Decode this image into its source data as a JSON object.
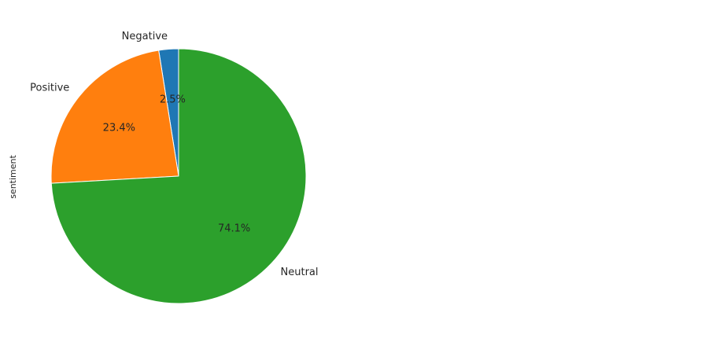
{
  "chart_data": {
    "type": "pie",
    "categories": [
      "Negative",
      "Positive",
      "Neutral"
    ],
    "values": [
      2.5,
      23.4,
      74.1
    ],
    "value_labels": [
      "2.5%",
      "23.4%",
      "74.1%"
    ],
    "colors": [
      "#1f77b4",
      "#ff7f0e",
      "#2ca02c"
    ],
    "ylabel": "sentiment",
    "start_angle_deg": 90,
    "direction": "counterclockwise"
  }
}
